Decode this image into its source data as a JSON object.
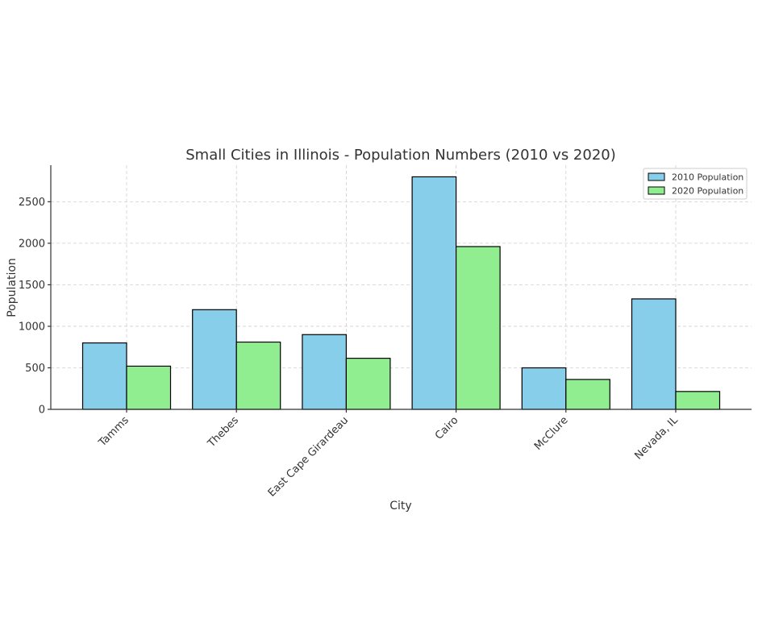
{
  "chart_data": {
    "type": "bar",
    "title": "Small Cities in Illinois - Population Numbers (2010 vs 2020)",
    "xlabel": "City",
    "ylabel": "Population",
    "categories": [
      "Tamms",
      "Thebes",
      "East Cape Girardeau",
      "Cairo",
      "McClure",
      "Nevada, IL"
    ],
    "series": [
      {
        "name": "2010 Population",
        "color": "#87ceeb",
        "values": [
          800,
          1200,
          900,
          2800,
          500,
          1330
        ]
      },
      {
        "name": "2020 Population",
        "color": "#90ee90",
        "values": [
          520,
          810,
          615,
          1960,
          360,
          215
        ]
      }
    ],
    "ylim": [
      0,
      2940
    ],
    "yticks": [
      0,
      500,
      1000,
      1500,
      2000,
      2500
    ],
    "grid": true,
    "legend_position": "top-right"
  }
}
